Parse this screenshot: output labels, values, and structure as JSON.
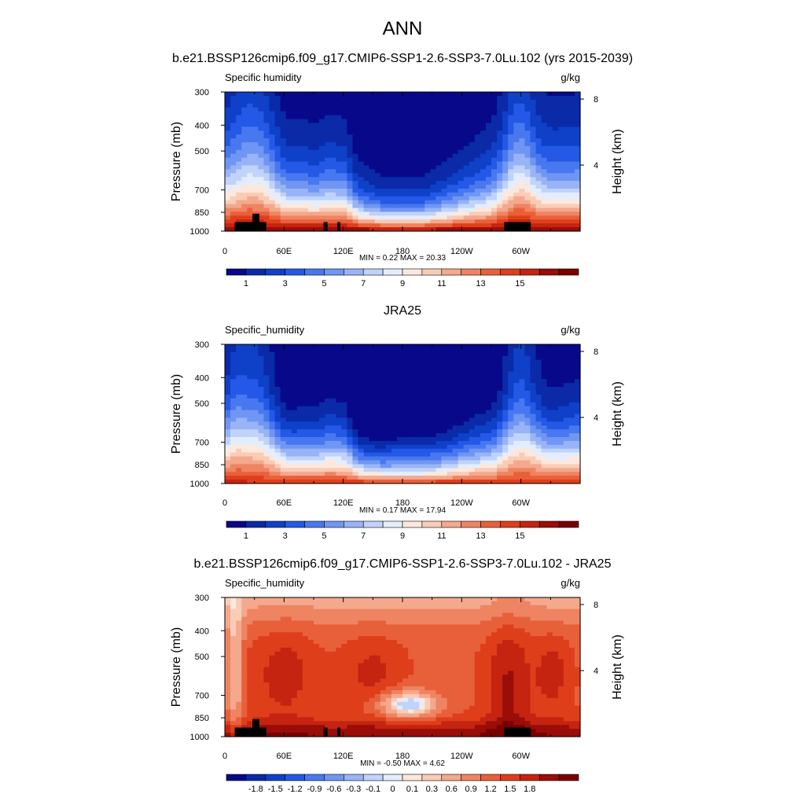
{
  "figure": {
    "title": "ANN"
  },
  "colors": {
    "main_scale": [
      "#08088a",
      "#0a2aa8",
      "#0f40c8",
      "#2458e6",
      "#4878f0",
      "#7096f3",
      "#98b4f6",
      "#c0d3fa",
      "#e4edfd",
      "#fde8dc",
      "#f9ccb6",
      "#f4a88d",
      "#ee8462",
      "#e8603a",
      "#df3e1a",
      "#c42410",
      "#9a0d08",
      "#7a0000"
    ],
    "diff_scale": [
      "#08088a",
      "#0a2aa8",
      "#0f40c8",
      "#2458e6",
      "#4878f0",
      "#7096f3",
      "#98b4f6",
      "#c0d3fa",
      "#e4edfd",
      "#fde8dc",
      "#f9ccb6",
      "#f4a88d",
      "#ee8462",
      "#e8603a",
      "#df3e1a",
      "#c42410",
      "#9a0d08",
      "#7a0000"
    ],
    "land": "#000000"
  },
  "chart_data": [
    {
      "type": "heatmap",
      "title": "b.e21.BSSP126cmip6.f09_g17.CMIP6-SSP1-2.6-SSP3-7.0Lu.102 (yrs 2015-2039)",
      "left_label": "Specific humidity",
      "units": "g/kg",
      "ylabel": "Pressure (mb)",
      "y2label": "Height (km)",
      "x_ticks": [
        "0",
        "60E",
        "120E",
        "180",
        "120W",
        "60W"
      ],
      "x_tick_lon": [
        0,
        60,
        120,
        180,
        240,
        300
      ],
      "xlim": [
        0,
        360
      ],
      "y_ticks": [
        "300",
        "400",
        "500",
        "700",
        "850",
        "1000"
      ],
      "y_tick_p": [
        300,
        400,
        500,
        700,
        850,
        1000
      ],
      "ylim": [
        300,
        1000
      ],
      "y2_ticks": [
        "8",
        "4"
      ],
      "y2_tick_km": [
        8,
        4
      ],
      "min": "0.22",
      "max": "20.33",
      "stats": "MIN =   0.22  MAX =  20.33",
      "colorbar_labels": [
        "1",
        "3",
        "5",
        "7",
        "9",
        "11",
        "13",
        "15"
      ],
      "field": "model",
      "land_mask": true
    },
    {
      "type": "heatmap",
      "title": "JRA25",
      "left_label": "Specific_humidity",
      "units": "g/kg",
      "ylabel": "Pressure (mb)",
      "y2label": "Height (km)",
      "x_ticks": [
        "0",
        "60E",
        "120E",
        "180",
        "120W",
        "60W"
      ],
      "x_tick_lon": [
        0,
        60,
        120,
        180,
        240,
        300
      ],
      "xlim": [
        0,
        360
      ],
      "y_ticks": [
        "300",
        "400",
        "500",
        "700",
        "850",
        "1000"
      ],
      "y_tick_p": [
        300,
        400,
        500,
        700,
        850,
        1000
      ],
      "ylim": [
        300,
        1000
      ],
      "y2_ticks": [
        "8",
        "4"
      ],
      "y2_tick_km": [
        8,
        4
      ],
      "min": "0.17",
      "max": "17.94",
      "stats": "MIN =   0.17  MAX =  17.94",
      "colorbar_labels": [
        "1",
        "3",
        "5",
        "7",
        "9",
        "11",
        "13",
        "15"
      ],
      "field": "obs",
      "land_mask": false
    },
    {
      "type": "heatmap",
      "title": "b.e21.BSSP126cmip6.f09_g17.CMIP6-SSP1-2.6-SSP3-7.0Lu.102 - JRA25",
      "left_label": "Specific_humidity",
      "units": "g/kg",
      "ylabel": "Pressure (mb)",
      "y2label": "Height (km)",
      "x_ticks": [
        "0",
        "60E",
        "120E",
        "180",
        "120W",
        "60W"
      ],
      "x_tick_lon": [
        0,
        60,
        120,
        180,
        240,
        300
      ],
      "xlim": [
        0,
        360
      ],
      "y_ticks": [
        "300",
        "400",
        "500",
        "700",
        "850",
        "1000"
      ],
      "y_tick_p": [
        300,
        400,
        500,
        700,
        850,
        1000
      ],
      "ylim": [
        300,
        1000
      ],
      "y2_ticks": [
        "8",
        "4"
      ],
      "y2_tick_km": [
        8,
        4
      ],
      "min": "-0.50",
      "max": "4.62",
      "stats": "MIN =  -0.50  MAX =   4.62",
      "colorbar_labels": [
        "-1.8",
        "-1.5",
        "-1.2",
        "-0.9",
        "-0.6",
        "-0.3",
        "-0.1",
        "0",
        "0.1",
        "0.3",
        "0.6",
        "0.9",
        "1.2",
        "1.5",
        "1.8"
      ],
      "field": "diff",
      "land_mask": true
    }
  ]
}
